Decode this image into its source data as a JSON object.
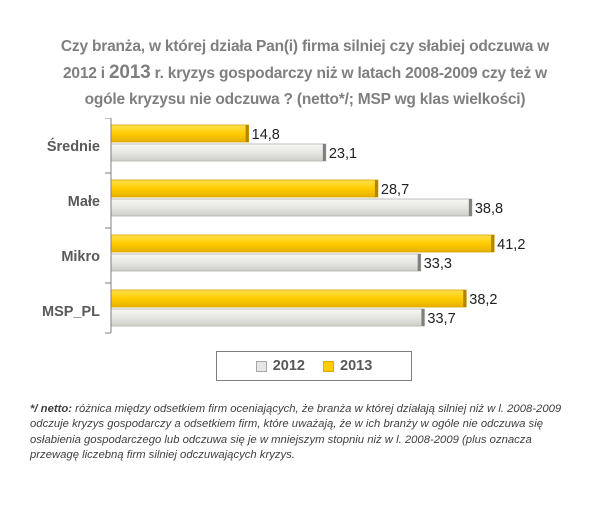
{
  "title": {
    "part1": "Czy branża, w której działa Pan(i) firma silniej czy słabiej odczuwa w",
    "part2_pre": "2012 i ",
    "part2_year": "2013",
    "part2_post": " r. kryzys gospodarczy niż w latach 2008-2009 czy też w",
    "part3": "ogóle kryzysu nie odczuwa ? (netto*/; MSP wg klas wielkości)"
  },
  "chart_data": {
    "type": "bar",
    "orientation": "horizontal",
    "categories": [
      "Średnie",
      "Małe",
      "Mikro",
      "MSP_PL"
    ],
    "series": [
      {
        "name": "2013",
        "color": "#ffcc00",
        "values": [
          14.8,
          28.7,
          41.2,
          38.2
        ],
        "labels": [
          "14,8",
          "28,7",
          "41,2",
          "38,2"
        ]
      },
      {
        "name": "2012",
        "color": "#e6e6e2",
        "values": [
          23.1,
          38.8,
          33.3,
          33.7
        ],
        "labels": [
          "23,1",
          "38,8",
          "33,3",
          "33,7"
        ]
      }
    ],
    "xlim": [
      0,
      45
    ],
    "legend": [
      "2012",
      "2013"
    ],
    "legend_position": "bottom"
  },
  "legend": {
    "item_2012": "2012",
    "item_2013": "2013"
  },
  "footnote": {
    "lead": "*/ netto:",
    "text": " różnica między odsetkiem firm oceniających, że branża w której działają silniej niż w l. 2008-2009 odczuje kryzys gospodarczy a odsetkiem firm, które uważają, że w ich branży w ogóle nie odczuwa się osłabienia gospodarczego lub odczuwa się je w mniejszym stopniu niż w l. 2008-2009 (plus oznacza przewagę liczebną firm silniej odczuwających kryzys."
  }
}
